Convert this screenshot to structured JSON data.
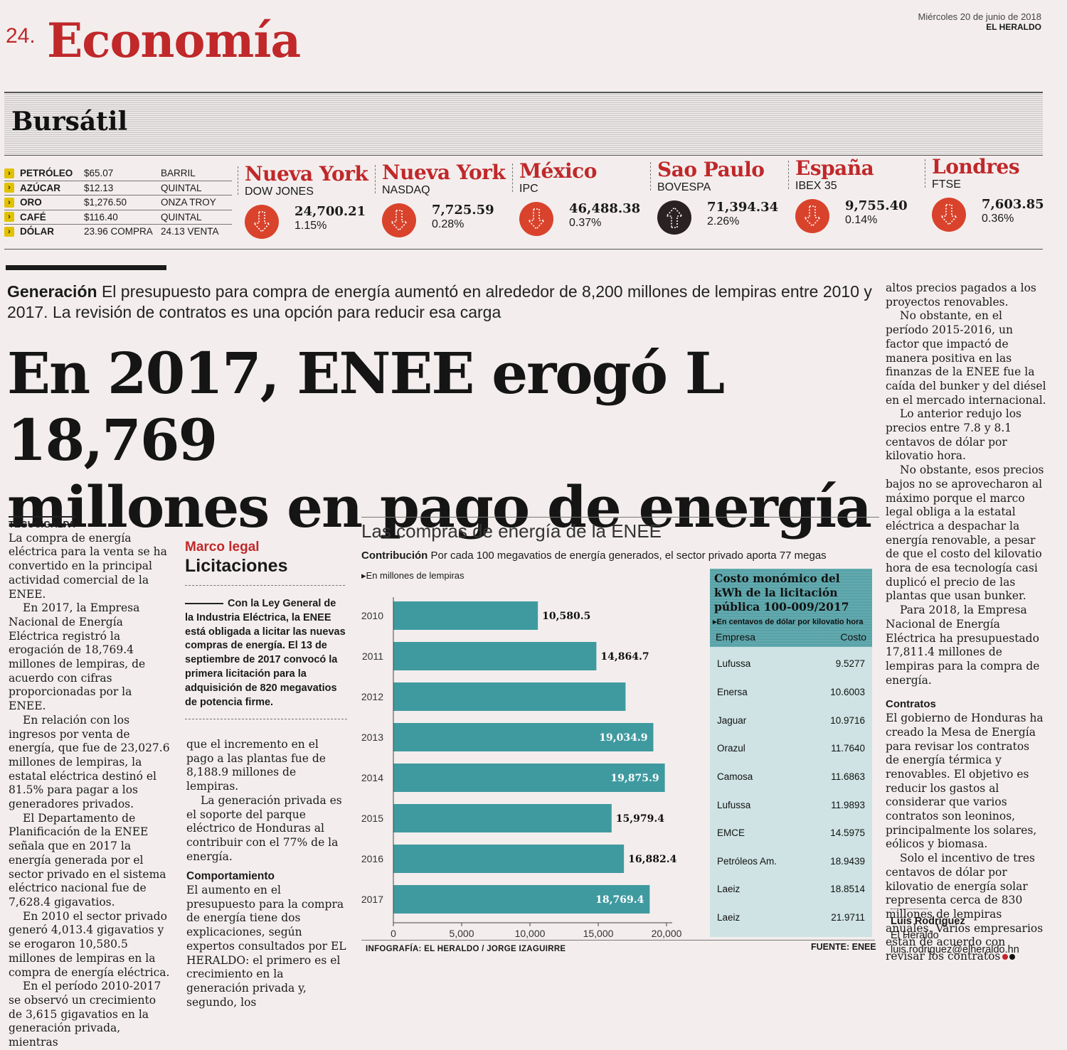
{
  "header": {
    "page_number": "24.",
    "section": "Economía",
    "date": "Miércoles 20 de junio de 2018",
    "newspaper": "EL HERALDO"
  },
  "bursatil": {
    "title": "Bursátil",
    "commodities": [
      {
        "name": "PETRÓLEO",
        "price": "$65.07",
        "unit": "BARRIL"
      },
      {
        "name": "AZÚCAR",
        "price": "$12.13",
        "unit": "QUINTAL"
      },
      {
        "name": "ORO",
        "price": "$1,276.50",
        "unit": "ONZA TROY"
      },
      {
        "name": "CAFÉ",
        "price": "$116.40",
        "unit": "QUINTAL"
      },
      {
        "name": "DÓLAR",
        "price": "23.96 COMPRA",
        "unit": "24.13 VENTA"
      }
    ],
    "markets": [
      {
        "city": "Nueva York",
        "index": "DOW JONES",
        "value": "24,700.21",
        "change": "1.15%",
        "direction": "down"
      },
      {
        "city": "Nueva York",
        "index": "NASDAQ",
        "value": "7,725.59",
        "change": "0.28%",
        "direction": "down"
      },
      {
        "city": "México",
        "index": "IPC",
        "value": "46,488.38",
        "change": "0.37%",
        "direction": "down"
      },
      {
        "city": "Sao Paulo",
        "index": "BOVESPA",
        "value": "71,394.34",
        "change": "2.26%",
        "direction": "up"
      },
      {
        "city": "España",
        "index": "IBEX 35",
        "value": "9,755.40",
        "change": "0.14%",
        "direction": "down"
      },
      {
        "city": "Londres",
        "index": "FTSE",
        "value": "7,603.85",
        "change": "0.36%",
        "direction": "down"
      }
    ],
    "colors": {
      "down": "#d9432c",
      "up": "#2a2222",
      "accent": "#c0282a"
    }
  },
  "article": {
    "kicker_label": "Generación",
    "kicker_text": "El presupuesto para compra de energía aumentó en alrededor de 8,200 millones de lempiras entre 2010 y 2017. La revisión de contratos es una opción para reducir esa carga",
    "headline_line1": "En 2017, ENEE erogó L 18,769",
    "headline_line2": "millones en pago de energía",
    "dateline": "TEGUCIGALPA",
    "col1": [
      "La compra de energía eléctrica para la venta se ha convertido en la principal actividad comercial de la ENEE.",
      "En 2017, la Empresa Nacional de Energía Eléctrica registró la erogación de 18,769.4 millones de lempiras, de acuerdo con cifras proporcionadas por la ENEE.",
      "En relación con los ingresos por venta de energía, que fue de 23,027.6 millones de lempiras, la estatal eléctrica destinó el 81.5% para pagar a los generadores privados.",
      "El Departamento de Planificación de la ENEE señala que en 2017 la energía generada por el sector privado en el sistema eléctrico nacional fue de 7,628.4 gigavatios.",
      "En 2010 el sector privado generó 4,013.4 gigavatios y se erogaron 10,580.5 millones de lempiras en la compra de energía eléctrica.",
      "En el período 2010-2017 se observó un crecimiento de 3,615 gigavatios en la generación privada, mientras"
    ],
    "col2": [
      "que el incremento en el pago a las plantas fue de 8,188.9 millones de lempiras.",
      "La generación privada es el soporte del parque eléctrico de Honduras al contribuir con el 77% de la energía."
    ],
    "col2_subhead": "Comportamiento",
    "col2b": [
      "El aumento en el presupuesto para la compra de energía tiene dos explicaciones, según expertos consultados por EL HERALDO: el primero es el crecimiento en la generación privada y, segundo, los"
    ],
    "col3": [
      "altos precios pagados a los proyectos renovables.",
      "No obstante, en el período 2015-2016, un factor que impactó de manera positiva en las finanzas de la ENEE fue la caída del bunker y del diésel en el mercado internacional.",
      "Lo anterior redujo los precios entre 7.8 y 8.1 centavos de dólar por kilovatio hora.",
      "No obstante, esos precios bajos no se aprovecharon al máximo porque el marco legal obliga a la estatal eléctrica a despachar la energía renovable, a pesar de que el costo del kilovatio hora de esa tecnología casi duplicó el precio de las plantas que usan bunker.",
      "Para 2018, la Empresa Nacional de Energía Eléctrica ha presupuestado 17,811.4 millones de lempiras para la compra de energía."
    ],
    "col3_subhead": "Contratos",
    "col3b": [
      "El gobierno de Honduras ha creado la Mesa de Energía para revisar los contratos de energía térmica y renovables. El objetivo es reducir los gastos al considerar que varios contratos son leoninos, principalmente los solares, eólicos y biomasa.",
      "Solo el incentivo de tres centavos de dólar por kilovatio de energía solar representa cerca de 830 millones de lempiras anuales. Varios empresarios están de acuerdo con revisar los contratos"
    ],
    "author": "Luis Rodríguez",
    "author_org": "El Heraldo",
    "author_email": "luis.rodriguez@elheraldo.hn"
  },
  "sidebar": {
    "kicker": "Marco legal",
    "title": "Licitaciones",
    "text": "Con la Ley General de la Industria Eléctrica, la ENEE está obligada a licitar las nuevas compras de energía. El 13 de septiembre de 2017 convocó la primera licitación para la adquisición de 820 megavatios de potencia firme."
  },
  "infographic": {
    "title": "Las compras de energía de la ENEE",
    "contrib_label": "Contribución",
    "contrib_text": "Por cada 100 megavatios de energía generados, el sector privado aporta 77 megas",
    "unit": "En millones de lempiras",
    "credit": "INFOGRAFÍA: EL HERALDO / JORGE IZAGUIRRE",
    "source": "FUENTE: ENEE",
    "bar_color": "#3f9aa0",
    "table": {
      "title": "Costo monómico del kWh de la licitación pública 100-009/2017",
      "subtitle": "En centavos de dólar por kilovatio hora",
      "col_empresa": "Empresa",
      "col_costo": "Costo",
      "rows": [
        {
          "empresa": "Lufussa",
          "costo": "9.5277"
        },
        {
          "empresa": "Enersa",
          "costo": "10.6003"
        },
        {
          "empresa": "Jaguar",
          "costo": "10.9716"
        },
        {
          "empresa": "Orazul",
          "costo": "11.7640"
        },
        {
          "empresa": "Camosa",
          "costo": "11.6863"
        },
        {
          "empresa": "Lufussa",
          "costo": "11.9893"
        },
        {
          "empresa": "EMCE",
          "costo": "14.5975"
        },
        {
          "empresa": "Petróleos Am.",
          "costo": "18.9439"
        },
        {
          "empresa": "Laeiz",
          "costo": "18.8514"
        },
        {
          "empresa": "Laeiz",
          "costo": "21.9711"
        }
      ]
    }
  },
  "chart_data": {
    "type": "bar",
    "orientation": "horizontal",
    "categories": [
      "2010",
      "2011",
      "2012",
      "2013",
      "2014",
      "2015",
      "2016",
      "2017"
    ],
    "values": [
      10580.5,
      14864.7,
      17000,
      19034.9,
      19875.9,
      15979.4,
      16882.4,
      18769.4
    ],
    "labels": [
      "10,580.5",
      "14,864.7",
      "",
      "19,034.9",
      "19,875.9",
      "15,979.4",
      "16,882.4",
      "18,769.4"
    ],
    "xlim": [
      0,
      20000
    ],
    "xticks": [
      "0",
      "5,000",
      "10,000",
      "15,000",
      "20,000"
    ],
    "tick_values": [
      0,
      5000,
      10000,
      15000,
      20000
    ]
  }
}
